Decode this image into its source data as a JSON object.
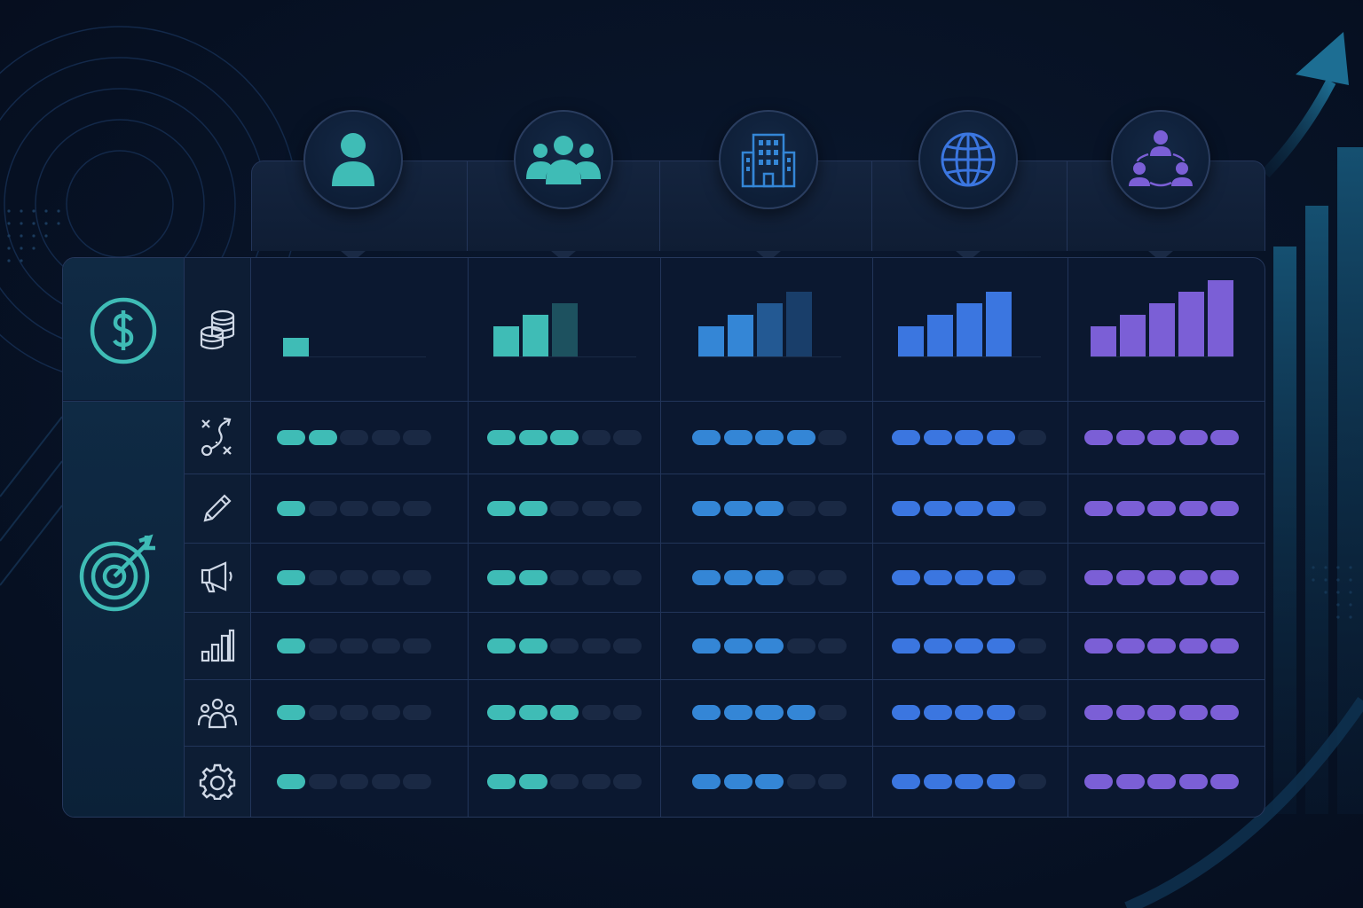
{
  "colors": {
    "background": "#081428",
    "teal": "#3fbcb6",
    "teal_dark": "#2a8fb0",
    "blue": "#3b82e0",
    "blue_mid": "#3478cf",
    "purple": "#7b5fd6",
    "empty": "#1a2944",
    "line": "#22355a"
  },
  "tiers": [
    {
      "icon": "user-icon",
      "color": "#3fbcb6",
      "bars": [
        1,
        0,
        0,
        0,
        0
      ],
      "ratings": [
        2,
        1,
        1,
        1,
        1,
        1
      ]
    },
    {
      "icon": "team-group-icon",
      "color": "#3fbcb6",
      "bars": [
        2,
        3,
        4,
        0,
        0
      ],
      "ratings": [
        3,
        2,
        2,
        2,
        3,
        2
      ]
    },
    {
      "icon": "building-icon",
      "color": "#3486d6",
      "bars": [
        2,
        3,
        4,
        5,
        0
      ],
      "ratings": [
        4,
        3,
        3,
        3,
        4,
        3
      ]
    },
    {
      "icon": "globe-icon",
      "color": "#3b76e0",
      "bars": [
        2,
        3,
        4,
        5,
        0
      ],
      "ratings": [
        4,
        4,
        4,
        4,
        4,
        4
      ]
    },
    {
      "icon": "network-icon",
      "color": "#7b5fd6",
      "bars": [
        2,
        3,
        4,
        5,
        6
      ],
      "ratings": [
        5,
        5,
        5,
        5,
        5,
        5
      ]
    }
  ],
  "groups": [
    {
      "icon": "dollar-circle-icon"
    },
    {
      "icon": "target-icon"
    }
  ],
  "rows": [
    {
      "icon": "coin-stack-icon"
    },
    {
      "icon": "strategy-play-icon"
    },
    {
      "icon": "pencil-icon"
    },
    {
      "icon": "megaphone-icon"
    },
    {
      "icon": "bar-chart-icon"
    },
    {
      "icon": "people-group-icon"
    },
    {
      "icon": "gear-icon"
    }
  ]
}
